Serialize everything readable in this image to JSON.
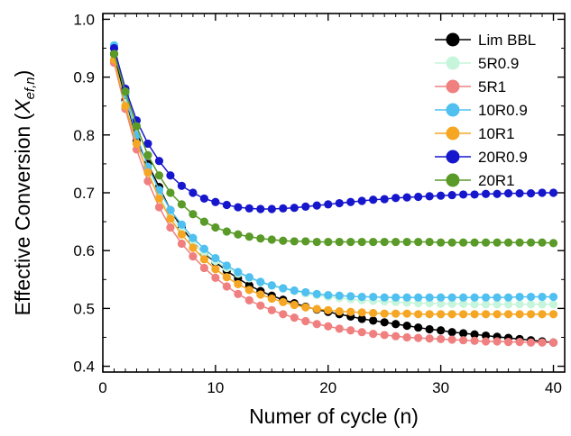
{
  "chart_data": {
    "type": "line",
    "title": "",
    "xlabel": "Numer of cycle (n)",
    "ylabel": {
      "prefix": "Effective Conversion (",
      "var": "X",
      "sub": "ef,n",
      "suffix": ")"
    },
    "xlim": [
      0,
      41
    ],
    "ylim": [
      0.39,
      1.01
    ],
    "xticks": [
      0,
      10,
      20,
      30,
      40
    ],
    "yticks": [
      0.4,
      0.5,
      0.6,
      0.7,
      0.8,
      0.9,
      1.0
    ],
    "ytick_labels": [
      "0.4",
      "0.5",
      "0.6",
      "0.7",
      "0.8",
      "0.9",
      "1.0"
    ],
    "grid": false,
    "legend_position": "top-right",
    "x": [
      1,
      2,
      3,
      4,
      5,
      6,
      7,
      8,
      9,
      10,
      11,
      12,
      13,
      14,
      15,
      16,
      17,
      18,
      19,
      20,
      21,
      22,
      23,
      24,
      25,
      26,
      27,
      28,
      29,
      30,
      31,
      32,
      33,
      34,
      35,
      36,
      37,
      38,
      39,
      40
    ],
    "series": [
      {
        "name": "Lim BBL",
        "color": "#000000",
        "line_color": "#000000",
        "values": [
          0.94,
          0.86,
          0.79,
          0.75,
          0.71,
          0.67,
          0.64,
          0.615,
          0.595,
          0.58,
          0.565,
          0.552,
          0.54,
          0.53,
          0.522,
          0.515,
          0.509,
          0.503,
          0.498,
          0.494,
          0.49,
          0.486,
          0.482,
          0.479,
          0.476,
          0.473,
          0.47,
          0.467,
          0.464,
          0.462,
          0.459,
          0.457,
          0.455,
          0.453,
          0.451,
          0.449,
          0.447,
          0.445,
          0.443,
          0.441
        ]
      },
      {
        "name": "5R0.9",
        "color": "#c6f5dc",
        "line_color": "#c6f5dc",
        "values": [
          0.93,
          0.855,
          0.785,
          0.735,
          0.695,
          0.66,
          0.635,
          0.613,
          0.597,
          0.582,
          0.57,
          0.56,
          0.552,
          0.545,
          0.539,
          0.534,
          0.53,
          0.526,
          0.523,
          0.52,
          0.518,
          0.516,
          0.514,
          0.513,
          0.512,
          0.511,
          0.51,
          0.509,
          0.509,
          0.508,
          0.508,
          0.508,
          0.507,
          0.507,
          0.507,
          0.507,
          0.507,
          0.507,
          0.507,
          0.507
        ]
      },
      {
        "name": "5R1",
        "color": "#f08080",
        "line_color": "#f08080",
        "values": [
          0.925,
          0.845,
          0.775,
          0.72,
          0.675,
          0.64,
          0.612,
          0.59,
          0.57,
          0.553,
          0.538,
          0.525,
          0.514,
          0.505,
          0.497,
          0.49,
          0.484,
          0.478,
          0.473,
          0.469,
          0.465,
          0.462,
          0.459,
          0.456,
          0.454,
          0.452,
          0.45,
          0.449,
          0.448,
          0.447,
          0.446,
          0.445,
          0.444,
          0.443,
          0.443,
          0.442,
          0.442,
          0.441,
          0.441,
          0.441
        ]
      },
      {
        "name": "10R0.9",
        "color": "#4fc0f0",
        "line_color": "#4fc0f0",
        "values": [
          0.955,
          0.87,
          0.8,
          0.745,
          0.705,
          0.67,
          0.645,
          0.622,
          0.603,
          0.587,
          0.574,
          0.563,
          0.554,
          0.546,
          0.54,
          0.535,
          0.531,
          0.528,
          0.525,
          0.523,
          0.522,
          0.521,
          0.52,
          0.52,
          0.519,
          0.519,
          0.519,
          0.519,
          0.519,
          0.519,
          0.519,
          0.519,
          0.519,
          0.519,
          0.519,
          0.519,
          0.52,
          0.52,
          0.52,
          0.52
        ]
      },
      {
        "name": "10R1",
        "color": "#f5a623",
        "line_color": "#f5a623",
        "values": [
          0.93,
          0.85,
          0.785,
          0.735,
          0.69,
          0.655,
          0.628,
          0.605,
          0.585,
          0.568,
          0.554,
          0.542,
          0.532,
          0.524,
          0.517,
          0.511,
          0.506,
          0.502,
          0.499,
          0.497,
          0.495,
          0.494,
          0.493,
          0.492,
          0.491,
          0.491,
          0.491,
          0.49,
          0.49,
          0.49,
          0.49,
          0.49,
          0.49,
          0.49,
          0.49,
          0.49,
          0.49,
          0.49,
          0.49,
          0.49
        ]
      },
      {
        "name": "20R0.9",
        "color": "#1616cc",
        "line_color": "#1616cc",
        "values": [
          0.95,
          0.88,
          0.825,
          0.785,
          0.755,
          0.73,
          0.712,
          0.7,
          0.69,
          0.684,
          0.679,
          0.675,
          0.673,
          0.672,
          0.672,
          0.673,
          0.674,
          0.676,
          0.678,
          0.68,
          0.682,
          0.684,
          0.686,
          0.688,
          0.689,
          0.691,
          0.692,
          0.693,
          0.694,
          0.695,
          0.696,
          0.697,
          0.697,
          0.698,
          0.698,
          0.699,
          0.699,
          0.699,
          0.7,
          0.7
        ]
      },
      {
        "name": "20R1",
        "color": "#5a9a28",
        "line_color": "#5a9a28",
        "values": [
          0.94,
          0.875,
          0.815,
          0.765,
          0.73,
          0.7,
          0.68,
          0.663,
          0.65,
          0.64,
          0.633,
          0.628,
          0.624,
          0.621,
          0.619,
          0.617,
          0.616,
          0.616,
          0.615,
          0.615,
          0.615,
          0.615,
          0.615,
          0.615,
          0.615,
          0.615,
          0.615,
          0.615,
          0.615,
          0.614,
          0.614,
          0.614,
          0.614,
          0.614,
          0.614,
          0.614,
          0.614,
          0.614,
          0.614,
          0.613
        ]
      }
    ]
  }
}
